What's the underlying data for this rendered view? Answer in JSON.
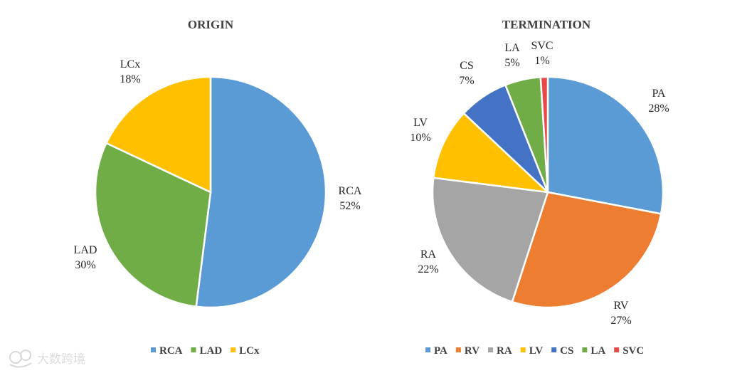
{
  "chart_data": [
    {
      "type": "pie",
      "title": "ORIGIN",
      "slices": [
        {
          "label": "RCA",
          "value": 52,
          "value_label": "52%",
          "color": "#5b9bd5"
        },
        {
          "label": "LAD",
          "value": 30,
          "value_label": "30%",
          "color": "#70ad47"
        },
        {
          "label": "LCx",
          "value": 18,
          "value_label": "18%",
          "color": "#ffc000"
        }
      ],
      "legend": {
        "position": "bottom",
        "entries": [
          "RCA",
          "LAD",
          "LCx"
        ]
      }
    },
    {
      "type": "pie",
      "title": "TERMINATION",
      "slices": [
        {
          "label": "PA",
          "value": 28,
          "value_label": "28%",
          "color": "#5b9bd5"
        },
        {
          "label": "RV",
          "value": 27,
          "value_label": "27%",
          "color": "#ed7d31"
        },
        {
          "label": "RA",
          "value": 22,
          "value_label": "22%",
          "color": "#a5a5a5"
        },
        {
          "label": "LV",
          "value": 10,
          "value_label": "10%",
          "color": "#ffc000"
        },
        {
          "label": "CS",
          "value": 7,
          "value_label": "7%",
          "color": "#4472c4"
        },
        {
          "label": "LA",
          "value": 5,
          "value_label": "5%",
          "color": "#70ad47"
        },
        {
          "label": "SVC",
          "value": 1,
          "value_label": "1%",
          "color": "#e84a4a"
        }
      ],
      "legend": {
        "position": "bottom",
        "entries": [
          "PA",
          "RV",
          "RA",
          "LV",
          "CS",
          "LA",
          "SVC"
        ]
      }
    }
  ],
  "watermark": {
    "text": "大数跨境",
    "icon": "brand-logo-icon"
  }
}
